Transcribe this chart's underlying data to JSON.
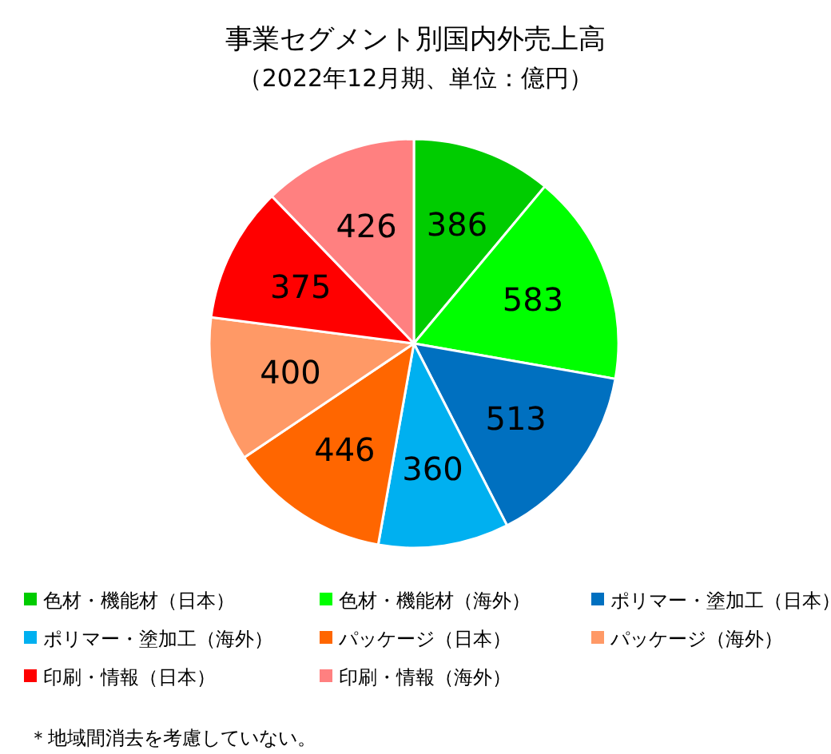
{
  "chart_data": {
    "type": "pie",
    "title": "事業セグメント別国内外売上高",
    "subtitle": "（2022年12月期、単位：億円）",
    "categories": [
      "色材・機能材（日本）",
      "色材・機能材（海外）",
      "ポリマー・塗加工（日本）",
      "ポリマー・塗加工（海外）",
      "パッケージ（日本）",
      "パッケージ（海外）",
      "印刷・情報（日本）",
      "印刷・情報（海外）"
    ],
    "values": [
      386,
      583,
      513,
      360,
      446,
      400,
      375,
      426
    ],
    "colors": [
      "#00cc00",
      "#00ff00",
      "#0070c0",
      "#00b0f0",
      "#ff6600",
      "#ff9966",
      "#ff0000",
      "#ff8080"
    ],
    "data_labels": true,
    "legend": "bottom",
    "annotations": [
      "＊地域間消去を考慮していない。"
    ]
  }
}
